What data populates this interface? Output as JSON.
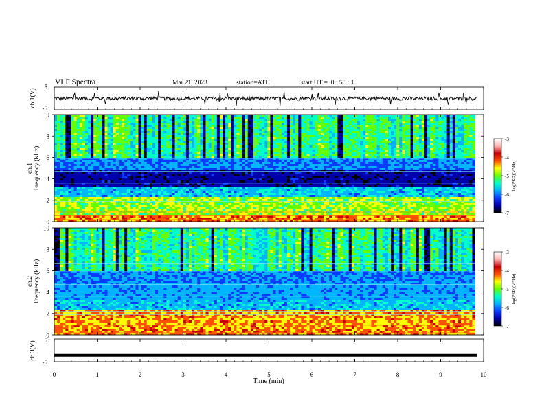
{
  "header": {
    "title": "VLF Spectra",
    "date": "Mar.21, 2023",
    "station": "station=ATH",
    "start_ut": "start UT =  0 : 50 : 1"
  },
  "chart_data": [
    {
      "type": "line",
      "panel": "ch1-waveform",
      "ylabel": "ch.1(V)",
      "ylim": [
        -5,
        5
      ],
      "yticks": [
        "5",
        "-5"
      ],
      "xlim": [
        0,
        10
      ],
      "baseline": 0,
      "trace_color": "#000000"
    },
    {
      "type": "heatmap",
      "panel": "ch1-spectrogram",
      "ylabel": "ch.1\nFrequency (kHz)",
      "ylim": [
        0,
        10
      ],
      "yticks": [
        "0",
        "2",
        "4",
        "6",
        "8",
        "10"
      ],
      "xlim": [
        0,
        10
      ],
      "data_end_min": 9.8,
      "colorbar": {
        "label": "log(PSD)(V²/Hz)",
        "range": [
          -7,
          -3
        ],
        "ticks": [
          "-3",
          "-4",
          "-5",
          "-6",
          "-7"
        ]
      }
    },
    {
      "type": "heatmap",
      "panel": "ch2-spectrogram",
      "ylabel": "ch.2\nFrequency (kHz)",
      "ylim": [
        0,
        10
      ],
      "yticks": [
        "0",
        "2",
        "4",
        "6",
        "8",
        "10"
      ],
      "xlim": [
        0,
        10
      ],
      "data_end_min": 9.8,
      "colorbar": {
        "label": "log(PSD)(V²/Hz)",
        "range": [
          -7,
          -3
        ],
        "ticks": [
          "-3",
          "-4",
          "-5",
          "-6",
          "-7"
        ]
      }
    },
    {
      "type": "line",
      "panel": "ch3-waveform",
      "ylabel": "ch.3(V)",
      "ylim": [
        -5,
        5
      ],
      "yticks": [
        "5",
        "-5"
      ],
      "xlim": [
        0,
        10
      ],
      "baseline": -2.2,
      "trace_color": "#000000",
      "xlabel": "Time (min)",
      "xticks": [
        "0",
        "1",
        "2",
        "3",
        "4",
        "5",
        "6",
        "7",
        "8",
        "9",
        "10"
      ]
    }
  ],
  "colormap": [
    "#000000",
    "#0000aa",
    "#0a3cff",
    "#00b4ff",
    "#00ffc8",
    "#64ff00",
    "#ffff00",
    "#ff5000",
    "#c80000",
    "#ffb4b4",
    "#ffffff"
  ]
}
